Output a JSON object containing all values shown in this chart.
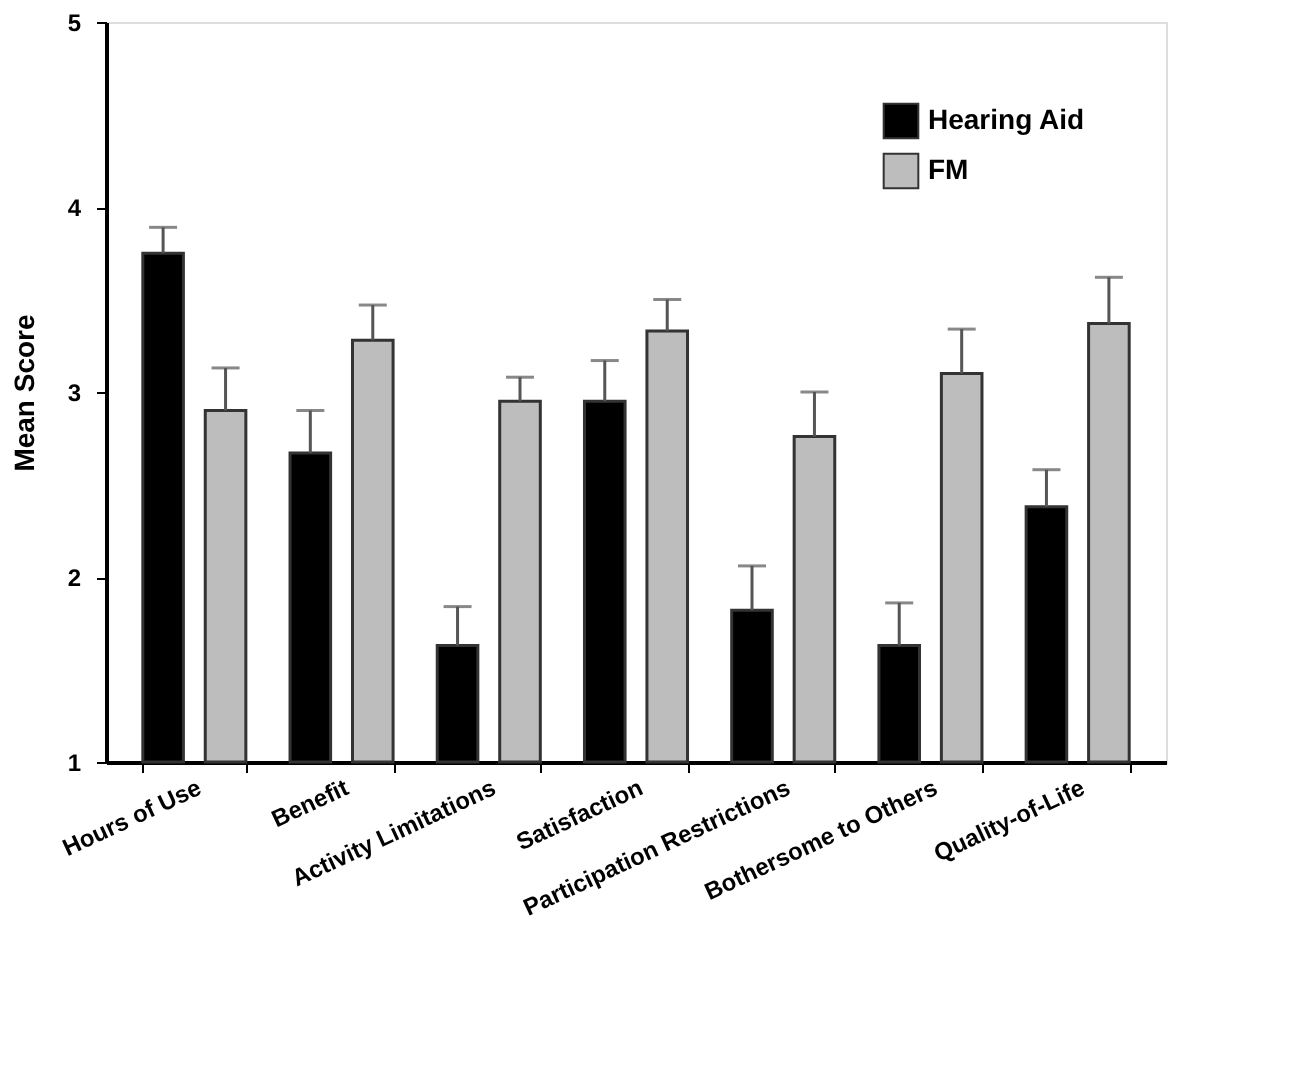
{
  "chart_data": {
    "type": "bar",
    "ylabel": "Mean Score",
    "categories": [
      "Hours of Use",
      "Benefit",
      "Activity Limitations",
      "Satisfaction",
      "Participation Restrictions",
      "Bothersome to Others",
      "Quality-of-Life"
    ],
    "series": [
      {
        "name": "Hearing Aid",
        "color": "#000000",
        "values": [
          3.75,
          2.67,
          1.63,
          2.95,
          1.82,
          1.63,
          2.38
        ],
        "errors": [
          [
            3.75,
            3.89
          ],
          [
            2.67,
            2.9
          ],
          [
            1.63,
            1.84
          ],
          [
            2.95,
            3.17
          ],
          [
            1.82,
            2.06
          ],
          [
            1.63,
            1.86
          ],
          [
            2.38,
            2.58
          ]
        ]
      },
      {
        "name": "FM",
        "color": "#bdbdbd",
        "values": [
          2.9,
          3.28,
          2.95,
          3.33,
          2.76,
          3.1,
          3.37
        ],
        "errors": [
          [
            2.9,
            3.13
          ],
          [
            3.28,
            3.47
          ],
          [
            2.95,
            3.08
          ],
          [
            3.33,
            3.5
          ],
          [
            2.76,
            3.0
          ],
          [
            3.1,
            3.34
          ],
          [
            3.37,
            3.62
          ]
        ]
      }
    ],
    "ylim": [
      1,
      5
    ],
    "yticks": [
      1,
      2,
      3,
      4,
      5
    ],
    "grid": false,
    "legend": "top right"
  }
}
